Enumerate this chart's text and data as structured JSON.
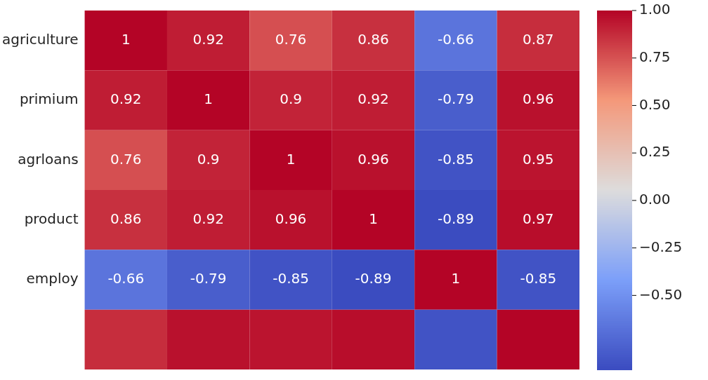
{
  "chart_data": {
    "type": "heatmap",
    "categories": [
      null,
      null,
      null,
      null,
      null,
      null
    ],
    "y_categories": [
      "agriculture",
      "primium",
      "agrloans",
      "product",
      "employ",
      null
    ],
    "cells": [
      [
        1,
        0.92,
        0.76,
        0.86,
        -0.66,
        0.87
      ],
      [
        0.92,
        1,
        0.9,
        0.92,
        -0.79,
        0.96
      ],
      [
        0.76,
        0.9,
        1,
        0.96,
        -0.85,
        0.95
      ],
      [
        0.86,
        0.92,
        0.96,
        1,
        -0.89,
        0.97
      ],
      [
        -0.66,
        -0.79,
        -0.85,
        -0.89,
        1,
        -0.85
      ],
      [
        0.87,
        0.96,
        0.95,
        0.97,
        -0.85,
        1
      ]
    ],
    "cell_labels": [
      [
        "1",
        "0.92",
        "0.76",
        "0.86",
        "-0.66",
        "0.87"
      ],
      [
        "0.92",
        "1",
        "0.9",
        "0.92",
        "-0.79",
        "0.96"
      ],
      [
        "0.76",
        "0.9",
        "1",
        "0.96",
        "-0.85",
        "0.95"
      ],
      [
        "0.86",
        "0.92",
        "0.96",
        "1",
        "-0.89",
        "0.97"
      ],
      [
        "-0.66",
        "-0.79",
        "-0.85",
        "-0.89",
        "1",
        "-0.85"
      ],
      [
        null,
        null,
        null,
        null,
        null,
        null
      ]
    ],
    "clim": [
      -0.89,
      1
    ],
    "cticks": [
      {
        "value": 1,
        "label": "1.00"
      },
      {
        "value": 0.75,
        "label": "0.75"
      },
      {
        "value": 0.5,
        "label": "0.50"
      },
      {
        "value": 0.25,
        "label": "0.25"
      },
      {
        "value": 0,
        "label": "0.00"
      },
      {
        "value": -0.25,
        "label": "−0.25"
      },
      {
        "value": -0.5,
        "label": "−0.50"
      }
    ],
    "tick_labels": "y",
    "grid": false
  }
}
